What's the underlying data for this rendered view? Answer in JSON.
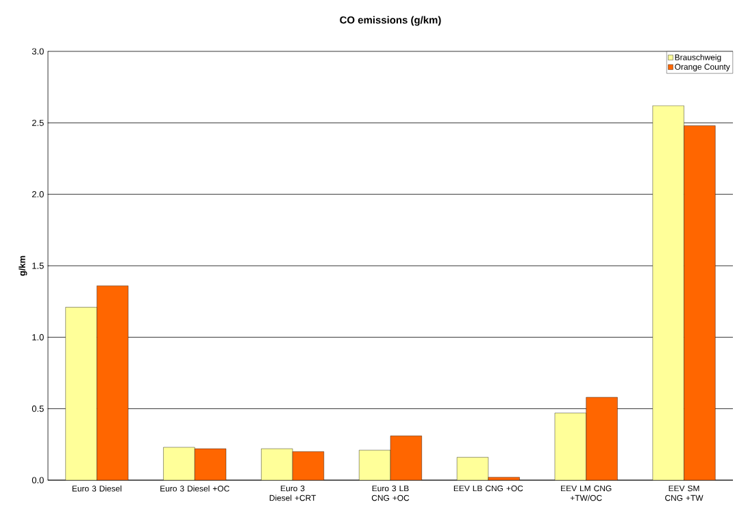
{
  "chart_data": {
    "type": "bar",
    "title": "CO emissions (g/km)",
    "ylabel": "g/km",
    "categories": [
      "Euro 3 Diesel",
      "Euro 3 Diesel +OC",
      "Euro 3 Diesel +CRT",
      "Euro 3 LB CNG +OC",
      "EEV LB CNG +OC",
      "EEV LM CNG +TW/OC",
      "EEV SM CNG +TW"
    ],
    "series": [
      {
        "name": "Brauschweig",
        "color": "#ffff99",
        "values": [
          1.21,
          0.23,
          0.22,
          0.21,
          0.16,
          0.47,
          2.62
        ]
      },
      {
        "name": "Orange County",
        "color": "#ff6600",
        "values": [
          1.36,
          0.22,
          0.2,
          0.31,
          0.02,
          0.58,
          2.48
        ]
      }
    ],
    "ylim": [
      0,
      3
    ],
    "yticks": [
      {
        "value": 0,
        "label": "0.0"
      },
      {
        "value": 0.5,
        "label": "0.5"
      },
      {
        "value": 1,
        "label": "1.0"
      },
      {
        "value": 1.5,
        "label": "1.5"
      },
      {
        "value": 2,
        "label": "2.0"
      },
      {
        "value": 2.5,
        "label": "2.5"
      },
      {
        "value": 3,
        "label": "3.0"
      }
    ],
    "grid": "y",
    "legend": "top right"
  }
}
